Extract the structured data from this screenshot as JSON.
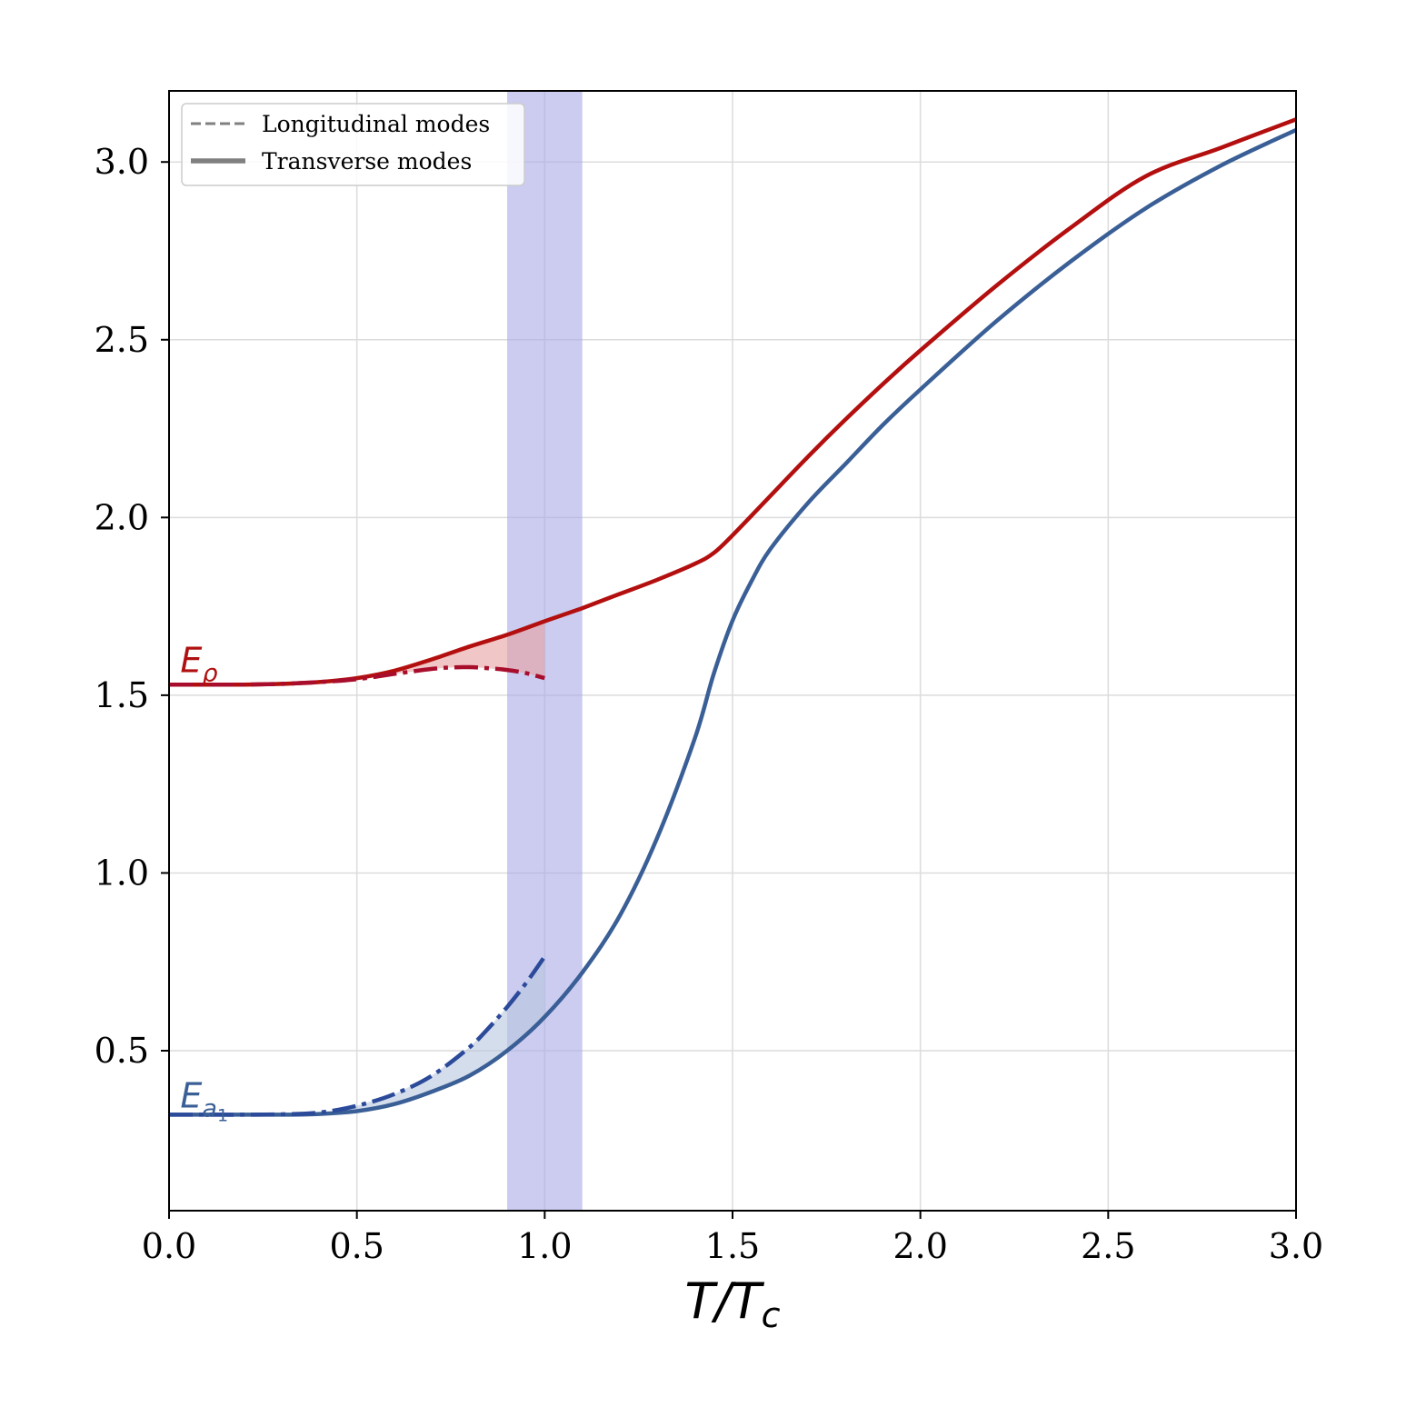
{
  "chart_data": {
    "type": "line",
    "xlabel": "T/T_c",
    "ylabel": "",
    "xlim": [
      0.0,
      3.0
    ],
    "ylim": [
      0.05,
      3.2
    ],
    "grid": true,
    "legend_position": "top-left",
    "x_ticks": [
      "0.0",
      "0.5",
      "1.0",
      "1.5",
      "2.0",
      "2.5",
      "3.0"
    ],
    "y_ticks": [
      "0.5",
      "1.0",
      "1.5",
      "2.0",
      "2.5",
      "3.0"
    ],
    "legend": [
      {
        "label": "Longitudinal modes",
        "style": "dashed",
        "color": "#808080"
      },
      {
        "label": "Transverse modes",
        "style": "solid",
        "color": "#808080"
      }
    ],
    "band": {
      "x_range": [
        0.9,
        1.1
      ],
      "color": "#a8aae6"
    },
    "annotations": [
      {
        "text": "E_ρ",
        "main": "E",
        "sub": "ρ",
        "x": 0.03,
        "y": 1.565,
        "color": "#b01010"
      },
      {
        "text": "E_a1",
        "main": "E",
        "sub": "a",
        "subsub": "1",
        "x": 0.03,
        "y": 0.34,
        "color": "#3a5f96"
      }
    ],
    "series": [
      {
        "mode": "transverse",
        "style": "solid",
        "color": "#b30f0f",
        "x": [
          0.0,
          0.1,
          0.2,
          0.3,
          0.4,
          0.5,
          0.6,
          0.7,
          0.8,
          0.9,
          1.0,
          1.1,
          1.2,
          1.3,
          1.4,
          1.45,
          1.5,
          1.6,
          1.7,
          1.8,
          1.9,
          2.0,
          2.2,
          2.4,
          2.6,
          2.8,
          3.0
        ],
        "y": [
          1.53,
          1.53,
          1.53,
          1.532,
          1.537,
          1.548,
          1.569,
          1.601,
          1.637,
          1.67,
          1.708,
          1.745,
          1.785,
          1.825,
          1.87,
          1.9,
          1.95,
          2.06,
          2.17,
          2.275,
          2.375,
          2.47,
          2.65,
          2.815,
          2.96,
          3.04,
          3.12
        ]
      },
      {
        "mode": "longitudinal",
        "style": "dashdot",
        "color": "#a80d2c",
        "x": [
          0.0,
          0.1,
          0.2,
          0.3,
          0.4,
          0.5,
          0.6,
          0.7,
          0.75,
          0.8,
          0.85,
          0.9,
          0.95,
          1.0
        ],
        "y": [
          1.53,
          1.53,
          1.53,
          1.532,
          1.537,
          1.545,
          1.56,
          1.574,
          1.578,
          1.579,
          1.576,
          1.571,
          1.562,
          1.548
        ]
      },
      {
        "mode": "transverse",
        "style": "solid",
        "color": "#3a5f96",
        "x": [
          0.0,
          0.1,
          0.2,
          0.3,
          0.4,
          0.5,
          0.6,
          0.7,
          0.8,
          0.9,
          1.0,
          1.1,
          1.2,
          1.3,
          1.4,
          1.45,
          1.5,
          1.55,
          1.6,
          1.7,
          1.8,
          1.9,
          2.0,
          2.2,
          2.4,
          2.6,
          2.8,
          3.0
        ],
        "y": [
          0.32,
          0.32,
          0.32,
          0.32,
          0.322,
          0.33,
          0.35,
          0.385,
          0.43,
          0.5,
          0.595,
          0.72,
          0.88,
          1.1,
          1.38,
          1.56,
          1.71,
          1.82,
          1.91,
          2.04,
          2.15,
          2.26,
          2.36,
          2.55,
          2.72,
          2.87,
          2.99,
          3.09
        ]
      },
      {
        "mode": "longitudinal",
        "style": "dashdot",
        "color": "#2b4a9a",
        "x": [
          0.0,
          0.1,
          0.2,
          0.3,
          0.4,
          0.5,
          0.6,
          0.7,
          0.8,
          0.85,
          0.9,
          0.95,
          1.0
        ],
        "y": [
          0.32,
          0.32,
          0.32,
          0.321,
          0.326,
          0.345,
          0.378,
          0.43,
          0.51,
          0.563,
          0.623,
          0.69,
          0.765
        ]
      }
    ],
    "shaded_regions": [
      {
        "between": [
          0,
          1
        ],
        "x_range": [
          0.5,
          1.0
        ],
        "color": "#e8a0a0"
      },
      {
        "between": [
          2,
          3
        ],
        "x_range": [
          0.45,
          1.0
        ],
        "color": "#b8c6de"
      }
    ]
  }
}
